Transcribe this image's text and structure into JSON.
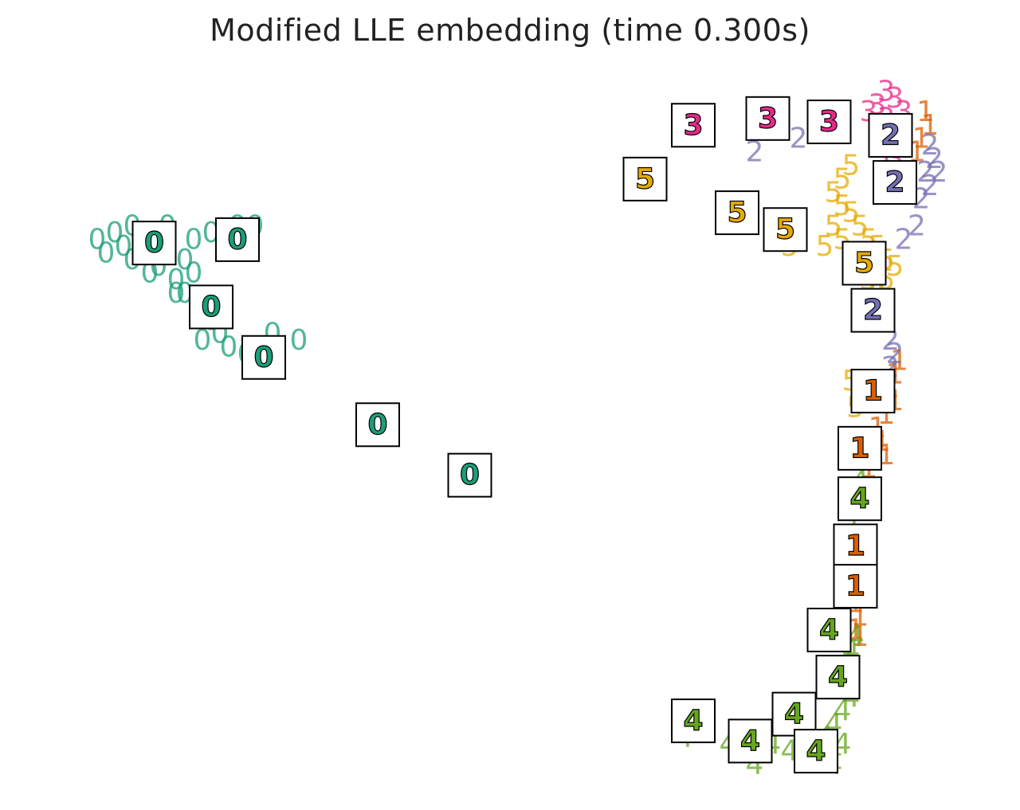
{
  "chart_data": {
    "type": "scatter",
    "title": "Modified LLE embedding (time 0.300s)",
    "marker": "digit label",
    "xlim": [
      0,
      1
    ],
    "ylim": [
      0,
      1
    ],
    "axes_visible": false,
    "grid": false,
    "colors": {
      "0": "#1b9e77",
      "1": "#d95f02",
      "2": "#7570b3",
      "3": "#e7298a",
      "4": "#66a61e",
      "5": "#e6ab02"
    },
    "series": [
      {
        "digit": "0",
        "points": [
          [
            0.02,
            0.78
          ],
          [
            0.03,
            0.76
          ],
          [
            0.04,
            0.79
          ],
          [
            0.05,
            0.77
          ],
          [
            0.06,
            0.8
          ],
          [
            0.06,
            0.75
          ],
          [
            0.07,
            0.78
          ],
          [
            0.08,
            0.76
          ],
          [
            0.09,
            0.79
          ],
          [
            0.09,
            0.74
          ],
          [
            0.1,
            0.77
          ],
          [
            0.11,
            0.72
          ],
          [
            0.12,
            0.75
          ],
          [
            0.12,
            0.7
          ],
          [
            0.13,
            0.73
          ],
          [
            0.14,
            0.68
          ],
          [
            0.15,
            0.66
          ],
          [
            0.16,
            0.64
          ],
          [
            0.17,
            0.62
          ],
          [
            0.19,
            0.61
          ],
          [
            0.2,
            0.6
          ],
          [
            0.13,
            0.78
          ],
          [
            0.15,
            0.79
          ],
          [
            0.18,
            0.8
          ],
          [
            0.2,
            0.8
          ],
          [
            0.1,
            0.8
          ],
          [
            0.08,
            0.73
          ],
          [
            0.11,
            0.7
          ],
          [
            0.14,
            0.63
          ],
          [
            0.16,
            0.67
          ],
          [
            0.22,
            0.64
          ],
          [
            0.25,
            0.63
          ]
        ]
      },
      {
        "digit": "1",
        "points": [
          [
            0.965,
            0.97
          ],
          [
            0.97,
            0.95
          ],
          [
            0.96,
            0.93
          ],
          [
            0.955,
            0.91
          ],
          [
            0.93,
            0.58
          ],
          [
            0.925,
            0.56
          ],
          [
            0.93,
            0.54
          ],
          [
            0.92,
            0.52
          ],
          [
            0.91,
            0.5
          ],
          [
            0.915,
            0.48
          ],
          [
            0.9,
            0.44
          ],
          [
            0.905,
            0.4
          ],
          [
            0.9,
            0.38
          ],
          [
            0.895,
            0.34
          ],
          [
            0.9,
            0.33
          ],
          [
            0.89,
            0.3
          ],
          [
            0.895,
            0.28
          ],
          [
            0.89,
            0.26
          ],
          [
            0.885,
            0.24
          ],
          [
            0.89,
            0.22
          ],
          [
            0.885,
            0.2
          ],
          [
            0.89,
            0.19
          ],
          [
            0.935,
            0.6
          ],
          [
            0.92,
            0.46
          ]
        ]
      },
      {
        "digit": "2",
        "points": [
          [
            0.97,
            0.92
          ],
          [
            0.975,
            0.9
          ],
          [
            0.965,
            0.88
          ],
          [
            0.97,
            0.86
          ],
          [
            0.98,
            0.88
          ],
          [
            0.96,
            0.84
          ],
          [
            0.955,
            0.8
          ],
          [
            0.94,
            0.78
          ],
          [
            0.925,
            0.63
          ],
          [
            0.93,
            0.61
          ],
          [
            0.925,
            0.59
          ],
          [
            0.845,
            0.94
          ],
          [
            0.82,
            0.93
          ],
          [
            0.77,
            0.91
          ]
        ]
      },
      {
        "digit": "3",
        "points": [
          [
            0.92,
            1.0
          ],
          [
            0.93,
            0.99
          ],
          [
            0.91,
            0.98
          ],
          [
            0.92,
            0.96
          ],
          [
            0.93,
            0.95
          ],
          [
            0.91,
            0.94
          ],
          [
            0.92,
            0.93
          ],
          [
            0.94,
            0.92
          ],
          [
            0.93,
            0.9
          ],
          [
            0.9,
            0.97
          ],
          [
            0.87,
            0.96
          ],
          [
            0.94,
            0.97
          ],
          [
            0.915,
            0.89
          ],
          [
            0.925,
            0.87
          ]
        ]
      },
      {
        "digit": "4",
        "points": [
          [
            0.69,
            0.04
          ],
          [
            0.74,
            0.03
          ],
          [
            0.79,
            0.03
          ],
          [
            0.81,
            0.02
          ],
          [
            0.83,
            0.01
          ],
          [
            0.84,
            0.03
          ],
          [
            0.85,
            0.04
          ],
          [
            0.86,
            0.02
          ],
          [
            0.87,
            0.03
          ],
          [
            0.86,
            0.06
          ],
          [
            0.87,
            0.08
          ],
          [
            0.88,
            0.1
          ],
          [
            0.87,
            0.12
          ],
          [
            0.875,
            0.15
          ],
          [
            0.88,
            0.17
          ],
          [
            0.885,
            0.19
          ],
          [
            0.86,
            0.0
          ],
          [
            0.77,
            0.0
          ],
          [
            0.88,
            0.37
          ],
          [
            0.875,
            0.33
          ],
          [
            0.89,
            0.42
          ],
          [
            0.875,
            0.26
          ]
        ]
      },
      {
        "digit": "5",
        "points": [
          [
            0.86,
            0.85
          ],
          [
            0.87,
            0.83
          ],
          [
            0.88,
            0.82
          ],
          [
            0.89,
            0.8
          ],
          [
            0.9,
            0.78
          ],
          [
            0.91,
            0.77
          ],
          [
            0.92,
            0.75
          ],
          [
            0.93,
            0.74
          ],
          [
            0.86,
            0.8
          ],
          [
            0.87,
            0.78
          ],
          [
            0.88,
            0.76
          ],
          [
            0.89,
            0.74
          ],
          [
            0.9,
            0.72
          ],
          [
            0.91,
            0.7
          ],
          [
            0.88,
            0.89
          ],
          [
            0.87,
            0.87
          ],
          [
            0.89,
            0.69
          ],
          [
            0.9,
            0.66
          ],
          [
            0.88,
            0.57
          ],
          [
            0.885,
            0.53
          ],
          [
            0.81,
            0.77
          ],
          [
            0.85,
            0.77
          ],
          [
            0.91,
            0.71
          ],
          [
            0.92,
            0.72
          ]
        ]
      }
    ],
    "thumbnails": [
      {
        "digit": "0",
        "x": 0.085,
        "y": 0.775
      },
      {
        "digit": "0",
        "x": 0.18,
        "y": 0.78
      },
      {
        "digit": "0",
        "x": 0.15,
        "y": 0.68
      },
      {
        "digit": "0",
        "x": 0.21,
        "y": 0.605
      },
      {
        "digit": "0",
        "x": 0.34,
        "y": 0.505
      },
      {
        "digit": "0",
        "x": 0.445,
        "y": 0.43
      },
      {
        "digit": "3",
        "x": 0.7,
        "y": 0.95
      },
      {
        "digit": "3",
        "x": 0.785,
        "y": 0.96
      },
      {
        "digit": "3",
        "x": 0.855,
        "y": 0.955
      },
      {
        "digit": "2",
        "x": 0.925,
        "y": 0.935
      },
      {
        "digit": "2",
        "x": 0.93,
        "y": 0.865
      },
      {
        "digit": "5",
        "x": 0.645,
        "y": 0.87
      },
      {
        "digit": "5",
        "x": 0.75,
        "y": 0.82
      },
      {
        "digit": "5",
        "x": 0.805,
        "y": 0.795
      },
      {
        "digit": "5",
        "x": 0.895,
        "y": 0.745
      },
      {
        "digit": "2",
        "x": 0.905,
        "y": 0.675
      },
      {
        "digit": "1",
        "x": 0.905,
        "y": 0.555
      },
      {
        "digit": "1",
        "x": 0.89,
        "y": 0.47
      },
      {
        "digit": "4",
        "x": 0.89,
        "y": 0.395
      },
      {
        "digit": "1",
        "x": 0.885,
        "y": 0.325
      },
      {
        "digit": "1",
        "x": 0.885,
        "y": 0.265
      },
      {
        "digit": "4",
        "x": 0.855,
        "y": 0.2
      },
      {
        "digit": "4",
        "x": 0.865,
        "y": 0.13
      },
      {
        "digit": "4",
        "x": 0.815,
        "y": 0.075
      },
      {
        "digit": "4",
        "x": 0.7,
        "y": 0.065
      },
      {
        "digit": "4",
        "x": 0.765,
        "y": 0.035
      },
      {
        "digit": "4",
        "x": 0.84,
        "y": 0.02
      }
    ]
  }
}
